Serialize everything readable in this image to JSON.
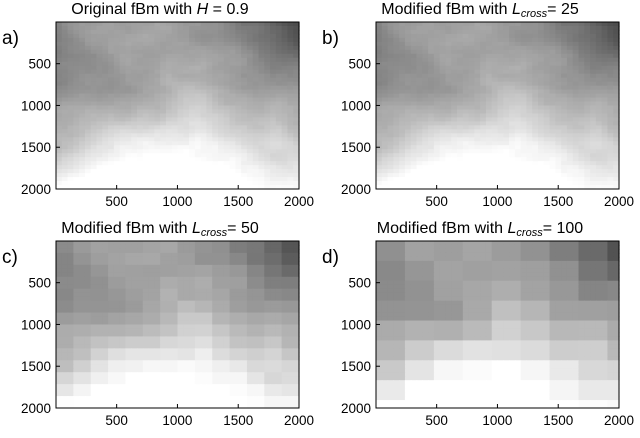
{
  "chart_data": [
    {
      "type": "heatmap",
      "panel_label": "a)",
      "title": {
        "prefix": "Original fBm with ",
        "var": "H",
        "sub": "",
        "suffix": " = 0.9"
      },
      "colormap": "gray",
      "blockiness": 1,
      "xlim": [
        1,
        2000
      ],
      "ylim": [
        1,
        2000
      ],
      "xticks": [
        500,
        1000,
        1500,
        2000
      ],
      "yticks": [
        500,
        1000,
        1500,
        2000
      ]
    },
    {
      "type": "heatmap",
      "panel_label": "b)",
      "title": {
        "prefix": "Modified fBm with ",
        "var": "L",
        "sub": "cross",
        "suffix": "= 25"
      },
      "colormap": "gray",
      "blockiness": 25,
      "xlim": [
        1,
        2000
      ],
      "ylim": [
        1,
        2000
      ],
      "xticks": [
        500,
        1000,
        1500,
        2000
      ],
      "yticks": [
        500,
        1000,
        1500,
        2000
      ]
    },
    {
      "type": "heatmap",
      "panel_label": "c)",
      "title": {
        "prefix": "Modified fBm with ",
        "var": "L",
        "sub": "cross",
        "suffix": "= 50"
      },
      "colormap": "gray",
      "blockiness": 50,
      "xlim": [
        1,
        2000
      ],
      "ylim": [
        1,
        2000
      ],
      "xticks": [
        500,
        1000,
        1500,
        2000
      ],
      "yticks": [
        500,
        1000,
        1500,
        2000
      ]
    },
    {
      "type": "heatmap",
      "panel_label": "d)",
      "title": {
        "prefix": "Modified fBm with ",
        "var": "L",
        "sub": "cross",
        "suffix": "= 100"
      },
      "colormap": "gray",
      "blockiness": 100,
      "xlim": [
        1,
        2000
      ],
      "ylim": [
        1,
        2000
      ],
      "xticks": [
        500,
        1000,
        1500,
        2000
      ],
      "yticks": [
        500,
        1000,
        1500,
        2000
      ]
    }
  ]
}
